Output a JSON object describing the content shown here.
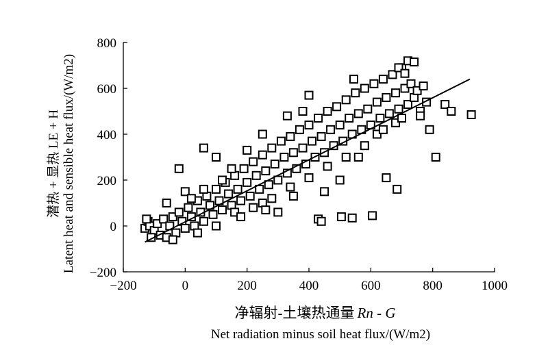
{
  "chart_data": {
    "type": "scatter",
    "xlabel_cn": "净辐射-土壤热通量",
    "xlabel_formula": "Rn - G",
    "xlabel_en": "Net radiation minus soil heat flux/(W/m2)",
    "ylabel_cn": "潜热 + 显热 LE + H",
    "ylabel_en": "Latent heat and sensible heat flux/(W/m2)",
    "xlim": [
      -200,
      1000
    ],
    "ylim": [
      -200,
      800
    ],
    "x_ticks": [
      -200,
      0,
      200,
      400,
      600,
      800,
      1000
    ],
    "y_ticks": [
      -200,
      0,
      200,
      400,
      600,
      800
    ],
    "x_tick_labels": [
      "−200",
      "0",
      "200",
      "400",
      "600",
      "800",
      "1000"
    ],
    "y_tick_labels": [
      "−200",
      "0",
      "200",
      "400",
      "600",
      "800"
    ],
    "marker": "open-square",
    "fit_line": {
      "x": [
        -130,
        920
      ],
      "y": [
        -70,
        640
      ]
    },
    "points": [
      [
        -130,
        -10
      ],
      [
        -120,
        20
      ],
      [
        -115,
        0
      ],
      [
        -125,
        30
      ],
      [
        -100,
        -20
      ],
      [
        -90,
        10
      ],
      [
        -80,
        -40
      ],
      [
        -70,
        30
      ],
      [
        -60,
        -50
      ],
      [
        -50,
        0
      ],
      [
        -40,
        40
      ],
      [
        -30,
        -30
      ],
      [
        -20,
        60
      ],
      [
        -10,
        20
      ],
      [
        0,
        -10
      ],
      [
        10,
        80
      ],
      [
        20,
        40
      ],
      [
        30,
        0
      ],
      [
        40,
        110
      ],
      [
        50,
        60
      ],
      [
        60,
        20
      ],
      [
        70,
        130
      ],
      [
        80,
        90
      ],
      [
        90,
        50
      ],
      [
        100,
        160
      ],
      [
        110,
        110
      ],
      [
        120,
        70
      ],
      [
        130,
        190
      ],
      [
        140,
        140
      ],
      [
        150,
        90
      ],
      [
        160,
        220
      ],
      [
        170,
        160
      ],
      [
        180,
        110
      ],
      [
        190,
        250
      ],
      [
        200,
        190
      ],
      [
        210,
        130
      ],
      [
        220,
        280
      ],
      [
        230,
        220
      ],
      [
        240,
        160
      ],
      [
        250,
        310
      ],
      [
        260,
        240
      ],
      [
        270,
        180
      ],
      [
        280,
        340
      ],
      [
        290,
        270
      ],
      [
        300,
        200
      ],
      [
        310,
        370
      ],
      [
        320,
        300
      ],
      [
        330,
        230
      ],
      [
        340,
        390
      ],
      [
        350,
        320
      ],
      [
        360,
        250
      ],
      [
        370,
        420
      ],
      [
        380,
        340
      ],
      [
        390,
        270
      ],
      [
        400,
        440
      ],
      [
        410,
        370
      ],
      [
        420,
        300
      ],
      [
        430,
        470
      ],
      [
        440,
        390
      ],
      [
        450,
        320
      ],
      [
        460,
        500
      ],
      [
        470,
        420
      ],
      [
        480,
        350
      ],
      [
        490,
        520
      ],
      [
        500,
        440
      ],
      [
        510,
        370
      ],
      [
        520,
        550
      ],
      [
        530,
        470
      ],
      [
        540,
        400
      ],
      [
        550,
        580
      ],
      [
        560,
        490
      ],
      [
        570,
        420
      ],
      [
        580,
        600
      ],
      [
        590,
        510
      ],
      [
        600,
        440
      ],
      [
        610,
        620
      ],
      [
        620,
        540
      ],
      [
        630,
        470
      ],
      [
        640,
        640
      ],
      [
        650,
        560
      ],
      [
        660,
        490
      ],
      [
        670,
        660
      ],
      [
        680,
        580
      ],
      [
        690,
        510
      ],
      [
        700,
        690
      ],
      [
        710,
        600
      ],
      [
        720,
        530
      ],
      [
        730,
        620
      ],
      [
        740,
        560
      ],
      [
        750,
        590
      ],
      [
        760,
        500
      ],
      [
        770,
        610
      ],
      [
        780,
        540
      ],
      [
        -20,
        250
      ],
      [
        60,
        340
      ],
      [
        400,
        570
      ],
      [
        430,
        30
      ],
      [
        440,
        20
      ],
      [
        505,
        40
      ],
      [
        540,
        35
      ],
      [
        605,
        45
      ],
      [
        650,
        210
      ],
      [
        685,
        160
      ],
      [
        810,
        300
      ],
      [
        840,
        530
      ],
      [
        860,
        500
      ],
      [
        925,
        485
      ],
      [
        720,
        720
      ],
      [
        740,
        715
      ],
      [
        690,
        690
      ],
      [
        545,
        640
      ],
      [
        710,
        665
      ],
      [
        150,
        250
      ],
      [
        250,
        100
      ],
      [
        300,
        60
      ],
      [
        350,
        130
      ],
      [
        200,
        330
      ],
      [
        100,
        300
      ],
      [
        0,
        150
      ],
      [
        -60,
        100
      ],
      [
        450,
        150
      ],
      [
        500,
        200
      ],
      [
        560,
        300
      ],
      [
        620,
        400
      ],
      [
        680,
        450
      ],
      [
        250,
        400
      ],
      [
        330,
        480
      ],
      [
        380,
        500
      ],
      [
        120,
        200
      ],
      [
        60,
        160
      ],
      [
        20,
        120
      ],
      [
        160,
        60
      ],
      [
        220,
        80
      ],
      [
        280,
        120
      ],
      [
        340,
        170
      ],
      [
        400,
        210
      ],
      [
        460,
        260
      ],
      [
        520,
        300
      ],
      [
        580,
        350
      ],
      [
        640,
        420
      ],
      [
        700,
        470
      ],
      [
        760,
        480
      ],
      [
        790,
        420
      ],
      [
        -110,
        -50
      ],
      [
        -40,
        -60
      ],
      [
        40,
        -30
      ],
      [
        100,
        0
      ],
      [
        180,
        40
      ],
      [
        260,
        70
      ]
    ]
  }
}
